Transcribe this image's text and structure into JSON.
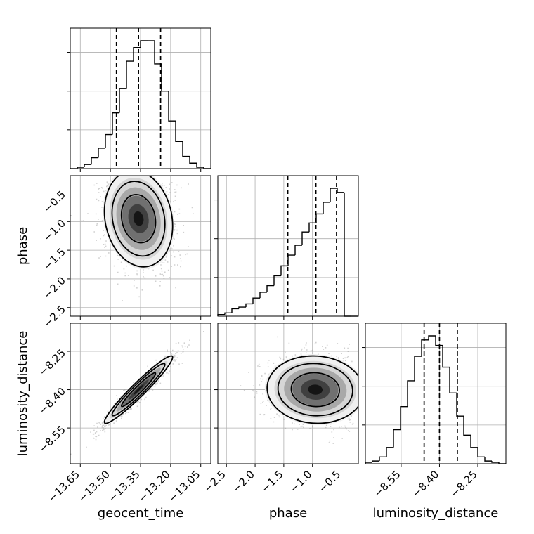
{
  "chart_data": {
    "type": "corner",
    "parameters": [
      "geocent_time",
      "phase",
      "luminosity_distance"
    ],
    "colors": {
      "hist": "#000000",
      "grid": "#b0b0b0",
      "contour": "#000000",
      "points": "#9a9a9a"
    },
    "grid": true,
    "axes": {
      "geocent_time": {
        "range": [
          -13.7,
          -13.0
        ],
        "ticks": [
          -13.65,
          -13.5,
          -13.35,
          -13.2,
          -13.05
        ],
        "tick_labels": [
          "−13.65",
          "−13.50",
          "−13.35",
          "−13.20",
          "−13.05"
        ]
      },
      "phase": {
        "range": [
          -2.65,
          -0.2
        ],
        "ticks": [
          -2.5,
          -2.0,
          -1.5,
          -1.0,
          -0.5
        ],
        "tick_labels": [
          "−2.5",
          "−2.0",
          "−1.5",
          "−1.0",
          "−0.5"
        ]
      },
      "luminosity_distance": {
        "range": [
          -8.69,
          -8.14
        ],
        "ticks": [
          -8.55,
          -8.4,
          -8.25
        ],
        "tick_labels": [
          "−8.55",
          "−8.40",
          "−8.25"
        ]
      }
    },
    "histograms": {
      "geocent_time": {
        "edges_range": [
          -13.7,
          -13.0
        ],
        "bins": 20,
        "counts": [
          0,
          1,
          3,
          8,
          15,
          25,
          41,
          59,
          79,
          89,
          94,
          94,
          77,
          57,
          35,
          20,
          9,
          4,
          1,
          0
        ],
        "quantiles": [
          -13.47,
          -13.36,
          -13.25
        ]
      },
      "phase": {
        "edges_range": [
          -2.65,
          -0.2
        ],
        "bins": 20,
        "counts": [
          2,
          4,
          9,
          11,
          15,
          22,
          29,
          37,
          49,
          61,
          74,
          86,
          102,
          113,
          124,
          138,
          155,
          150,
          0,
          0
        ],
        "quantiles": [
          -1.43,
          -0.94,
          -0.58
        ]
      },
      "luminosity_distance": {
        "edges_range": [
          -8.69,
          -8.14
        ],
        "bins": 20,
        "counts": [
          1,
          2,
          5,
          12,
          25,
          42,
          61,
          79,
          91,
          94,
          87,
          71,
          52,
          35,
          21,
          12,
          5,
          2,
          1,
          0
        ],
        "quantiles": [
          -8.46,
          -8.4,
          -8.33
        ]
      }
    },
    "correlations": {
      "phase_vs_geocent_time": {
        "x_mean": -13.36,
        "x_sd": 0.085,
        "y_mean": -0.95,
        "y_sd": 0.42,
        "rho": -0.15,
        "y_max": -0.3
      },
      "luminosity_distance_vs_geocent_time": {
        "x_mean": -13.36,
        "x_sd": 0.085,
        "y_mean": -8.4,
        "y_sd": 0.066,
        "rho": 0.96
      },
      "luminosity_distance_vs_phase": {
        "x_mean": -0.95,
        "x_sd": 0.42,
        "y_mean": -8.4,
        "y_sd": 0.066,
        "rho": -0.05,
        "x_max": -0.3
      }
    }
  }
}
